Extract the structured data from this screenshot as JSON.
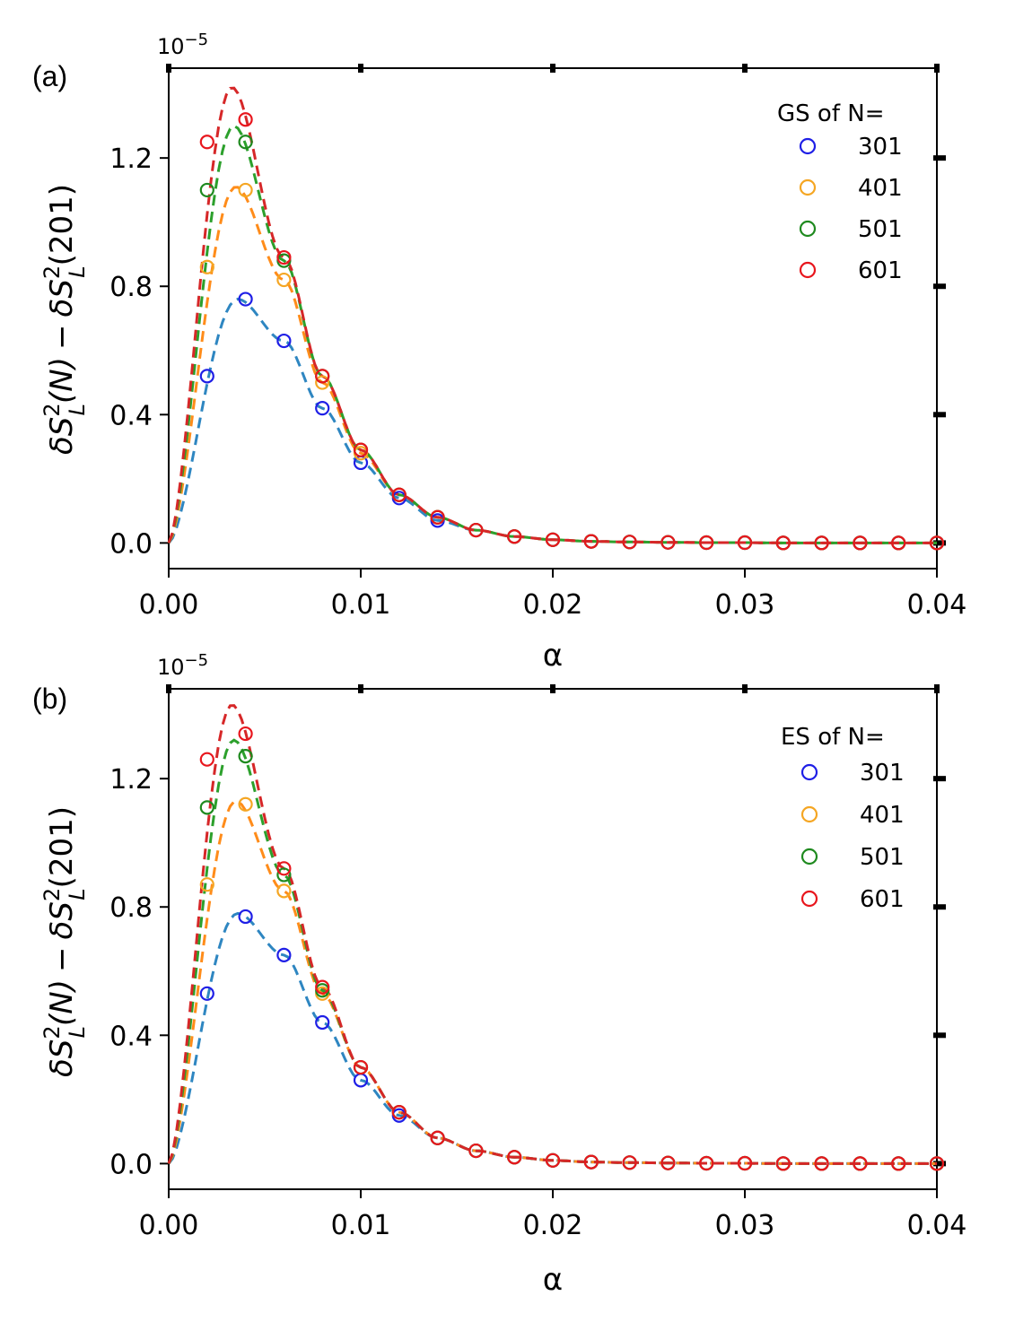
{
  "chart_data": [
    {
      "type": "scatter",
      "panel_label": "(a)",
      "xlabel": "α",
      "ylabel": {
        "delta": "δ",
        "S": "S",
        "sup": "2",
        "sub": "L",
        "argN": "(N)",
        "minus": "−",
        "arg201": "(201)"
      },
      "y_exponent": "10",
      "y_exponent_power": "−5",
      "xlim": [
        0.0,
        0.04
      ],
      "ylim": [
        -0.08,
        1.48
      ],
      "xticks": [
        {
          "value": 0.0,
          "label": "0.00"
        },
        {
          "value": 0.01,
          "label": "0.01"
        },
        {
          "value": 0.02,
          "label": "0.02"
        },
        {
          "value": 0.03,
          "label": "0.03"
        },
        {
          "value": 0.04,
          "label": "0.04"
        }
      ],
      "yticks": [
        {
          "value": 0.0,
          "label": "0.0"
        },
        {
          "value": 0.4,
          "label": "0.4"
        },
        {
          "value": 0.8,
          "label": "0.8"
        },
        {
          "value": 1.2,
          "label": "1.2"
        }
      ],
      "legend": {
        "title": "GS of N=",
        "position": "top-right"
      },
      "x": [
        0.002,
        0.004,
        0.006,
        0.008,
        0.01,
        0.012,
        0.014,
        0.016,
        0.018,
        0.02,
        0.022,
        0.024,
        0.026,
        0.028,
        0.03,
        0.032,
        0.034,
        0.036,
        0.038,
        0.04
      ],
      "series": [
        {
          "name": "301",
          "marker_color": "#1f1fe6",
          "line_color": "#2e86c1",
          "values": [
            0.52,
            0.76,
            0.63,
            0.42,
            0.25,
            0.14,
            0.07,
            0.04,
            0.02,
            0.01,
            0.005,
            0.003,
            0.002,
            0.001,
            0.001,
            0.0,
            0.0,
            0.0,
            0.0,
            0.0
          ],
          "fit_peak": 0.76
        },
        {
          "name": "401",
          "marker_color": "#f5a623",
          "line_color": "#ff8c1a",
          "values": [
            0.86,
            1.1,
            0.82,
            0.5,
            0.28,
            0.15,
            0.08,
            0.04,
            0.02,
            0.01,
            0.005,
            0.003,
            0.002,
            0.001,
            0.001,
            0.0,
            0.0,
            0.0,
            0.0,
            0.0
          ],
          "fit_peak": 1.11
        },
        {
          "name": "501",
          "marker_color": "#1f8a1f",
          "line_color": "#2ca02c",
          "values": [
            1.1,
            1.25,
            0.88,
            0.52,
            0.29,
            0.15,
            0.08,
            0.04,
            0.02,
            0.01,
            0.005,
            0.003,
            0.002,
            0.001,
            0.001,
            0.0,
            0.0,
            0.0,
            0.0,
            0.0
          ],
          "fit_peak": 1.3
        },
        {
          "name": "601",
          "marker_color": "#e8161d",
          "line_color": "#d62728",
          "values": [
            1.25,
            1.32,
            0.89,
            0.52,
            0.29,
            0.15,
            0.08,
            0.04,
            0.02,
            0.01,
            0.005,
            0.003,
            0.002,
            0.001,
            0.001,
            0.0,
            0.0,
            0.0,
            0.0,
            0.0
          ],
          "fit_peak": 1.42
        }
      ]
    },
    {
      "type": "scatter",
      "panel_label": "(b)",
      "xlabel": "α",
      "ylabel": {
        "delta": "δ",
        "S": "S",
        "sup": "2",
        "sub": "L",
        "argN": "(N)",
        "minus": "−",
        "arg201": "(201)"
      },
      "y_exponent": "10",
      "y_exponent_power": "−5",
      "xlim": [
        0.0,
        0.04
      ],
      "ylim": [
        -0.08,
        1.48
      ],
      "xticks": [
        {
          "value": 0.0,
          "label": "0.00"
        },
        {
          "value": 0.01,
          "label": "0.01"
        },
        {
          "value": 0.02,
          "label": "0.02"
        },
        {
          "value": 0.03,
          "label": "0.03"
        },
        {
          "value": 0.04,
          "label": "0.04"
        }
      ],
      "yticks": [
        {
          "value": 0.0,
          "label": "0.0"
        },
        {
          "value": 0.4,
          "label": "0.4"
        },
        {
          "value": 0.8,
          "label": "0.8"
        },
        {
          "value": 1.2,
          "label": "1.2"
        }
      ],
      "legend": {
        "title": "ES of N=",
        "position": "top-right"
      },
      "x": [
        0.002,
        0.004,
        0.006,
        0.008,
        0.01,
        0.012,
        0.014,
        0.016,
        0.018,
        0.02,
        0.022,
        0.024,
        0.026,
        0.028,
        0.03,
        0.032,
        0.034,
        0.036,
        0.038,
        0.04
      ],
      "series": [
        {
          "name": "301",
          "marker_color": "#1f1fe6",
          "line_color": "#2e86c1",
          "values": [
            0.53,
            0.77,
            0.65,
            0.44,
            0.26,
            0.15,
            0.08,
            0.04,
            0.02,
            0.01,
            0.005,
            0.003,
            0.002,
            0.001,
            0.001,
            0.0,
            0.0,
            0.0,
            0.0,
            0.0
          ],
          "fit_peak": 0.78
        },
        {
          "name": "401",
          "marker_color": "#f5a623",
          "line_color": "#ff8c1a",
          "values": [
            0.87,
            1.12,
            0.85,
            0.53,
            0.3,
            0.16,
            0.08,
            0.04,
            0.02,
            0.01,
            0.005,
            0.003,
            0.002,
            0.001,
            0.001,
            0.0,
            0.0,
            0.0,
            0.0,
            0.0
          ],
          "fit_peak": 1.13
        },
        {
          "name": "501",
          "marker_color": "#1f8a1f",
          "line_color": "#2ca02c",
          "values": [
            1.11,
            1.27,
            0.9,
            0.54,
            0.3,
            0.16,
            0.08,
            0.04,
            0.02,
            0.01,
            0.005,
            0.003,
            0.002,
            0.001,
            0.001,
            0.0,
            0.0,
            0.0,
            0.0,
            0.0
          ],
          "fit_peak": 1.32
        },
        {
          "name": "601",
          "marker_color": "#e8161d",
          "line_color": "#d62728",
          "values": [
            1.26,
            1.34,
            0.92,
            0.55,
            0.3,
            0.16,
            0.08,
            0.04,
            0.02,
            0.01,
            0.005,
            0.003,
            0.002,
            0.001,
            0.001,
            0.0,
            0.0,
            0.0,
            0.0,
            0.0
          ],
          "fit_peak": 1.43
        }
      ]
    }
  ]
}
